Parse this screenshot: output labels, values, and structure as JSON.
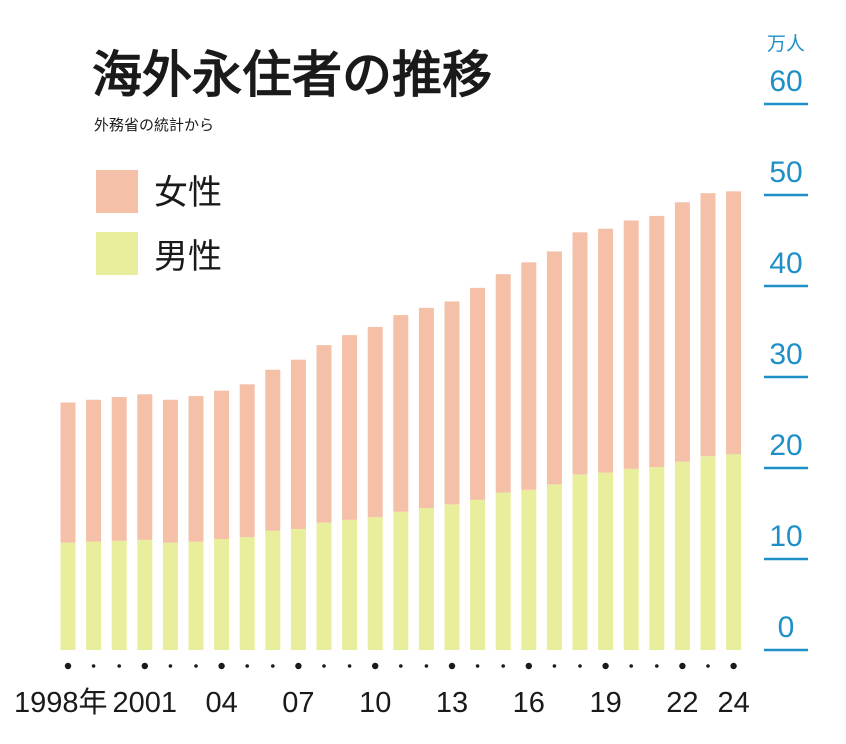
{
  "chart_data": {
    "type": "bar",
    "stacked": true,
    "title": "海外永住者の推移",
    "subtitle": "外務省の統計から",
    "y_unit": "万人",
    "ylim": [
      0,
      60
    ],
    "y_ticks": [
      0,
      10,
      20,
      30,
      40,
      50,
      60
    ],
    "y_axis_side": "right",
    "grid": false,
    "legend_position": "top-left",
    "colors": {
      "female": "#f5c0a8",
      "male": "#e8ee9c",
      "axis": "#1f8fc8",
      "text": "#1a1a1a"
    },
    "categories": [
      "1998",
      "1999",
      "2000",
      "2001",
      "2002",
      "2003",
      "2004",
      "2005",
      "2006",
      "2007",
      "2008",
      "2009",
      "2010",
      "2011",
      "2012",
      "2013",
      "2014",
      "2015",
      "2016",
      "2017",
      "2018",
      "2019",
      "2020",
      "2021",
      "2022",
      "2023",
      "2024"
    ],
    "x_tick_labels": [
      {
        "index": 0,
        "label": "1998年"
      },
      {
        "index": 3,
        "label": "2001"
      },
      {
        "index": 6,
        "label": "04"
      },
      {
        "index": 9,
        "label": "07"
      },
      {
        "index": 12,
        "label": "10"
      },
      {
        "index": 15,
        "label": "13"
      },
      {
        "index": 18,
        "label": "16"
      },
      {
        "index": 21,
        "label": "19"
      },
      {
        "index": 24,
        "label": "22"
      },
      {
        "index": 26,
        "label": "24"
      }
    ],
    "series": [
      {
        "name": "男性",
        "key": "male",
        "values": [
          11.8,
          11.9,
          12.0,
          12.1,
          11.8,
          11.9,
          12.2,
          12.4,
          13.1,
          13.3,
          14.0,
          14.3,
          14.6,
          15.2,
          15.6,
          16.0,
          16.5,
          17.3,
          17.6,
          18.2,
          19.3,
          19.5,
          19.9,
          20.1,
          20.7,
          21.3,
          21.5
        ]
      },
      {
        "name": "女性",
        "key": "female",
        "values": [
          15.4,
          15.6,
          15.8,
          16.0,
          15.7,
          16.0,
          16.3,
          16.8,
          17.7,
          18.6,
          19.5,
          20.3,
          20.9,
          21.6,
          22.0,
          22.3,
          23.3,
          24.0,
          25.0,
          25.6,
          26.6,
          26.8,
          27.3,
          27.6,
          28.5,
          28.9,
          28.9
        ]
      }
    ],
    "legend": [
      {
        "label": "女性",
        "key": "female"
      },
      {
        "label": "男性",
        "key": "male"
      }
    ]
  }
}
